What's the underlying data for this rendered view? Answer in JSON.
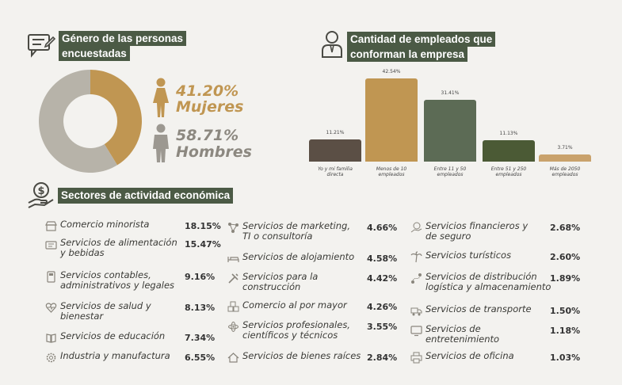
{
  "gender": {
    "title_lines": [
      "Género de las personas",
      "encuestadas"
    ],
    "female_pct": "41.20%",
    "female_label": "Mujeres",
    "male_pct": "58.71%",
    "male_label": "Hombres",
    "colors": {
      "female": "#c09652",
      "male": "#b7b3a9"
    }
  },
  "employees": {
    "title_lines": [
      "Cantidad de empleados que",
      "conforman la empresa"
    ]
  },
  "sectors": {
    "title": "Sectores de actividad económica",
    "items": [
      {
        "label": [
          "Comercio minorista"
        ],
        "value": "18.15%",
        "icon": "store-icon"
      },
      {
        "label": [
          "Servicios de alimentación",
          "y bebidas"
        ],
        "value": "15.47%",
        "icon": "food-icon"
      },
      {
        "label": [
          "Servicios contables,",
          "administrativos y legales"
        ],
        "value": "9.16%",
        "icon": "calculator-icon"
      },
      {
        "label": [
          "Servicios de salud y",
          "bienestar"
        ],
        "value": "8.13%",
        "icon": "heartbeat-icon"
      },
      {
        "label": [
          "Servicios de educación"
        ],
        "value": "7.34%",
        "icon": "book-icon"
      },
      {
        "label": [
          "Industria y manufactura"
        ],
        "value": "6.55%",
        "icon": "gear-icon"
      },
      {
        "label": [
          "Servicios de marketing,",
          "TI o consultoría"
        ],
        "value": "4.66%",
        "icon": "network-icon"
      },
      {
        "label": [
          "Servicios de alojamiento"
        ],
        "value": "4.58%",
        "icon": "bed-icon"
      },
      {
        "label": [
          "Servicios para la",
          "construcción"
        ],
        "value": "4.42%",
        "icon": "tools-icon"
      },
      {
        "label": [
          "Comercio al por mayor"
        ],
        "value": "4.26%",
        "icon": "boxes-icon"
      },
      {
        "label": [
          "Servicios profesionales,",
          "científicos y técnicos"
        ],
        "value": "3.55%",
        "icon": "atom-icon"
      },
      {
        "label": [
          "Servicios de bienes raíces"
        ],
        "value": "2.84%",
        "icon": "house-icon"
      },
      {
        "label": [
          "Servicios financieros y",
          "de seguro"
        ],
        "value": "2.68%",
        "icon": "money-hand-icon"
      },
      {
        "label": [
          "Servicios turísticos"
        ],
        "value": "2.60%",
        "icon": "palm-icon"
      },
      {
        "label": [
          "Servicios de distribución",
          "logística y almacenamiento"
        ],
        "value": "1.89%",
        "icon": "route-icon"
      },
      {
        "label": [
          "Servicios de transporte"
        ],
        "value": "1.50%",
        "icon": "truck-icon"
      },
      {
        "label": [
          "Servicios de",
          "entretenimiento"
        ],
        "value": "1.18%",
        "icon": "monitor-icon"
      },
      {
        "label": [
          "Servicios de oficina"
        ],
        "value": "1.03%",
        "icon": "printer-icon"
      }
    ]
  },
  "chart_data": [
    {
      "type": "pie",
      "categories": [
        "Mujeres",
        "Hombres"
      ],
      "values": [
        41.2,
        58.71
      ],
      "colors": [
        "#c09652",
        "#b7b3a9"
      ],
      "donut": true
    },
    {
      "type": "bar",
      "categories": [
        [
          "Yo y mi familia",
          "directa"
        ],
        [
          "Menos de 10",
          "empleados"
        ],
        [
          "Entre 11 y 50",
          "empleados"
        ],
        [
          "Entre 51 y 250",
          "empleados"
        ],
        [
          "Más de 2050",
          "empleados"
        ]
      ],
      "values": [
        11.21,
        42.54,
        31.41,
        11.13,
        3.71
      ],
      "value_labels": [
        "11.21%",
        "42.54%",
        "31.41%",
        "11.13%",
        "3.71%"
      ],
      "colors": [
        "#5b4f45",
        "#c09652",
        "#5c6b55",
        "#4b5a35",
        "#c9a26c"
      ],
      "ylim": [
        0,
        42.54
      ],
      "grid": false
    }
  ]
}
